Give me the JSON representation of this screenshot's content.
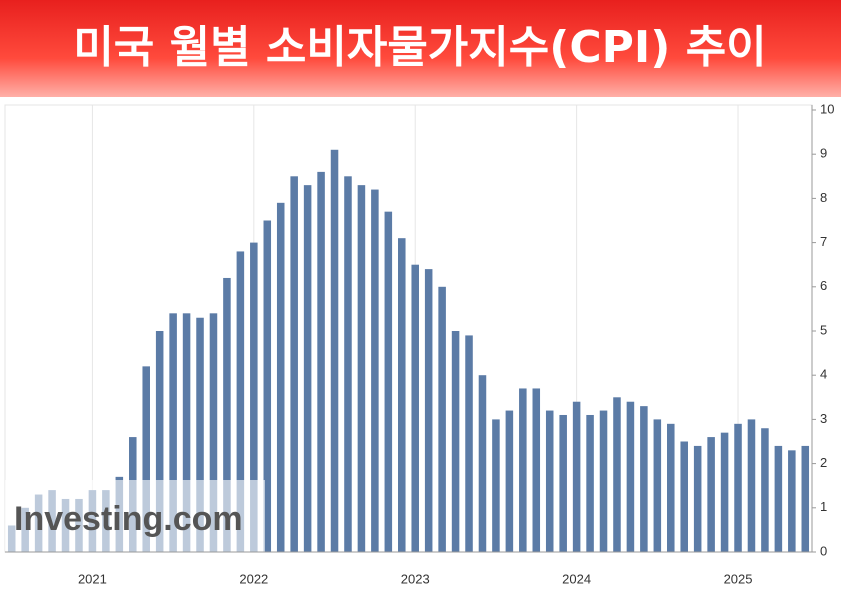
{
  "chart_data": {
    "type": "bar",
    "title": "미국 월별 소비자물가지수(CPI) 추이",
    "watermark": "Investing.com",
    "categories": [
      null,
      null,
      null,
      null,
      null,
      null,
      null,
      "2021",
      null,
      null,
      null,
      null,
      null,
      null,
      null,
      null,
      null,
      null,
      null,
      "2022",
      null,
      null,
      null,
      null,
      null,
      null,
      null,
      null,
      null,
      null,
      null,
      "2023",
      null,
      null,
      null,
      null,
      null,
      null,
      null,
      null,
      null,
      null,
      null,
      "2024",
      null,
      null,
      null,
      null,
      null,
      null,
      null,
      null,
      null,
      null,
      null,
      "2025",
      null,
      null,
      null,
      null
    ],
    "values": [
      0.6,
      1.0,
      1.3,
      1.4,
      1.2,
      1.2,
      1.4,
      1.4,
      1.7,
      2.6,
      4.2,
      5.0,
      5.4,
      5.4,
      5.3,
      5.4,
      6.2,
      6.8,
      7.0,
      7.5,
      7.9,
      8.5,
      8.3,
      8.6,
      9.1,
      8.5,
      8.3,
      8.2,
      7.7,
      7.1,
      6.5,
      6.4,
      6.0,
      5.0,
      4.9,
      4.0,
      3.0,
      3.2,
      3.7,
      3.7,
      3.2,
      3.1,
      3.4,
      3.1,
      3.2,
      3.5,
      3.4,
      3.3,
      3.0,
      2.9,
      2.5,
      2.4,
      2.6,
      2.7,
      2.9,
      3.0,
      2.8,
      2.4,
      2.3,
      2.4
    ],
    "color": "#5b7ba6",
    "ylim": [
      0,
      10
    ],
    "yticks": [
      0,
      1,
      2,
      3,
      4,
      5,
      6,
      7,
      8,
      9,
      10
    ],
    "grid": true
  }
}
